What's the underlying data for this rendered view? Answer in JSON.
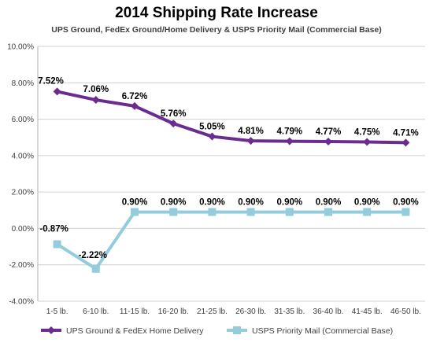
{
  "chart_data": {
    "type": "line",
    "title": "2014 Shipping Rate Increase",
    "subtitle": "UPS Ground, FedEx Ground/Home Delivery & USPS Priority Mail (Commercial Base)",
    "categories": [
      "1-5 lb.",
      "6-10 lb.",
      "11-15 lb.",
      "16-20 lb.",
      "21-25 lb.",
      "26-30 lb.",
      "31-35 lb.",
      "36-40 lb.",
      "41-45 lb.",
      "46-50 lb."
    ],
    "y_ticks": [
      "10.00%",
      "8.00%",
      "6.00%",
      "4.00%",
      "2.00%",
      "0.00%",
      "-2.00%",
      "-4.00%"
    ],
    "ylim": [
      -4,
      10
    ],
    "grid": true,
    "legend_position": "bottom",
    "series": [
      {
        "name": "UPS Ground & FedEx Home Delivery",
        "color": "#6b2c91",
        "marker": "diamond",
        "values": [
          7.52,
          7.06,
          6.72,
          5.76,
          5.05,
          4.81,
          4.79,
          4.77,
          4.75,
          4.71
        ],
        "labels": [
          "7.52%",
          "7.06%",
          "6.72%",
          "5.76%",
          "5.05%",
          "4.81%",
          "4.79%",
          "4.77%",
          "4.75%",
          "4.71%"
        ]
      },
      {
        "name": "USPS Priority Mail (Commercial Base)",
        "color": "#93cddd",
        "marker": "square",
        "values": [
          -0.87,
          -2.22,
          0.9,
          0.9,
          0.9,
          0.9,
          0.9,
          0.9,
          0.9,
          0.9
        ],
        "labels": [
          "-0.87%",
          "-2.22%",
          "0.90%",
          "0.90%",
          "0.90%",
          "0.90%",
          "0.90%",
          "0.90%",
          "0.90%",
          "0.90%"
        ]
      }
    ]
  }
}
